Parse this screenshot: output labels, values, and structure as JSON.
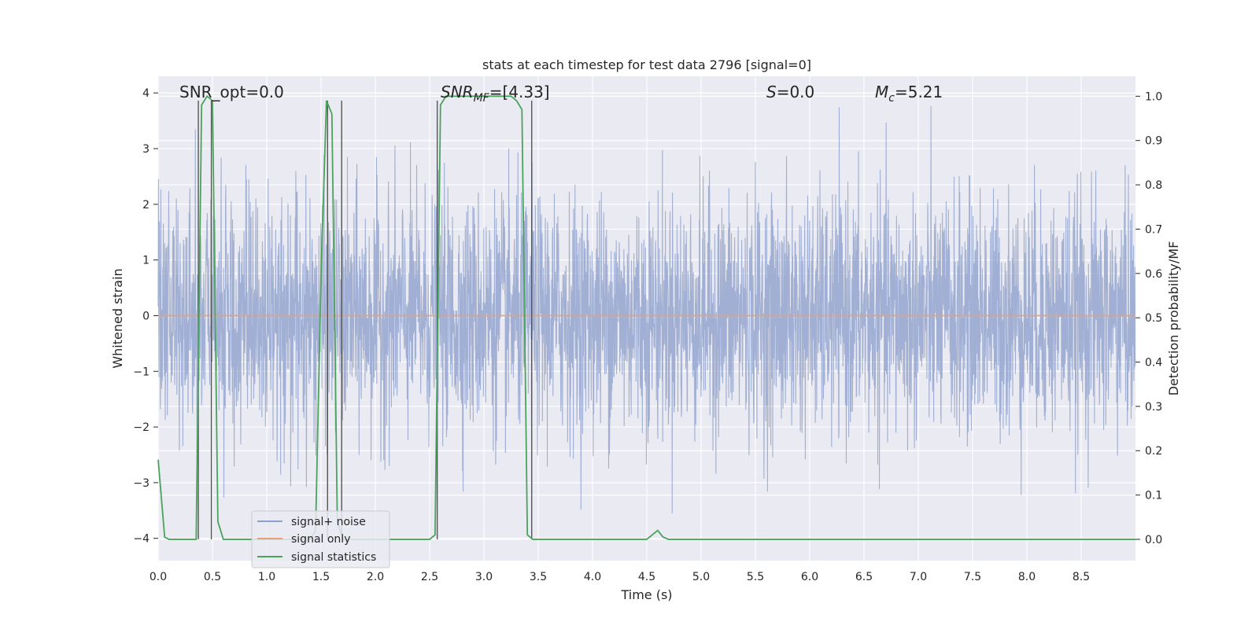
{
  "chart_data": {
    "type": "line",
    "title": "stats at each timestep for test data 2796 [signal=0]",
    "xlabel": "Time (s)",
    "ylabel": "Whitened strain",
    "y2label": "Detection probability/MF",
    "xlim": [
      0,
      9.0
    ],
    "ylim": [
      -4.4,
      4.3
    ],
    "y2lim": [
      -0.048,
      1.045
    ],
    "xticks": [
      "0.0",
      "0.5",
      "1.0",
      "1.5",
      "2.0",
      "2.5",
      "3.0",
      "3.5",
      "4.0",
      "4.5",
      "5.0",
      "5.5",
      "6.0",
      "6.5",
      "7.0",
      "7.5",
      "8.0",
      "8.5"
    ],
    "yticks": [
      "4",
      "3",
      "2",
      "1",
      "0",
      "−1",
      "−2",
      "−3",
      "−4"
    ],
    "y2ticks": [
      "1.0",
      "0.9",
      "0.8",
      "0.7",
      "0.6",
      "0.5",
      "0.4",
      "0.3",
      "0.2",
      "0.1",
      "0.0"
    ],
    "grid": true,
    "legend_position": "lower-left",
    "annotations": [
      {
        "label": "SNR_opt=0.0",
        "x": 0.2
      },
      {
        "label_main": "SNR",
        "label_sub": "MF",
        "label_rest": "=[4.33]",
        "x": 2.6
      },
      {
        "label_main": "S",
        "label_rest": "=0.0",
        "x": 5.6
      },
      {
        "label_main": "M",
        "label_sub": "c",
        "label_rest": "=5.21",
        "x": 6.6
      }
    ],
    "series": [
      {
        "name": "signal+ noise",
        "color": "#8da0cb",
        "description_values": "whitened noise, approx ±1.6 typical, peaks to ±3.9"
      },
      {
        "name": "signal only",
        "color": "#e8a07a",
        "values": [
          [
            0.0,
            0.0
          ],
          [
            9.0,
            0.0
          ]
        ]
      },
      {
        "name": "signal statistics",
        "color": "#4aa35c",
        "axis": "y2",
        "x": [
          0.0,
          0.06,
          0.1,
          0.15,
          0.2,
          0.25,
          0.3,
          0.35,
          0.4,
          0.45,
          0.5,
          0.55,
          0.6,
          0.65,
          0.7,
          0.75,
          0.8,
          0.85,
          0.9,
          0.95,
          1.0,
          1.05,
          1.1,
          1.15,
          1.2,
          1.25,
          1.3,
          1.35,
          1.4,
          1.45,
          1.5,
          1.55,
          1.6,
          1.65,
          1.7,
          1.75,
          1.8,
          1.85,
          1.9,
          1.95,
          2.0,
          2.05,
          2.1,
          2.15,
          2.2,
          2.25,
          2.3,
          2.35,
          2.4,
          2.45,
          2.5,
          2.55,
          2.6,
          2.65,
          2.7,
          2.75,
          2.8,
          2.85,
          2.9,
          2.95,
          3.0,
          3.05,
          3.1,
          3.15,
          3.2,
          3.25,
          3.3,
          3.35,
          3.4,
          3.45,
          3.5,
          3.55,
          3.6,
          3.65,
          3.7,
          3.75,
          3.8,
          3.85,
          3.9,
          3.95,
          4.0,
          4.05,
          4.1,
          4.15,
          4.2,
          4.25,
          4.3,
          4.35,
          4.4,
          4.45,
          4.5,
          4.55,
          4.6,
          4.65,
          4.7,
          4.75,
          4.8,
          4.85,
          4.9,
          4.95,
          5.0,
          5.5,
          6.0,
          6.5,
          7.0,
          7.5,
          8.0,
          8.5,
          9.0
        ],
        "values": [
          0.18,
          0.005,
          0.0,
          0.0,
          0.0,
          0.0,
          0.0,
          0.0,
          0.98,
          1.0,
          0.99,
          0.04,
          0.0,
          0.0,
          0.0,
          0.0,
          0.0,
          0.0,
          0.0,
          0.0,
          0.0,
          0.0,
          0.0,
          0.0,
          0.0,
          0.0,
          0.0,
          0.0,
          0.0,
          0.02,
          0.6,
          0.99,
          0.96,
          0.04,
          0.0,
          0.0,
          0.0,
          0.0,
          0.0,
          0.0,
          0.0,
          0.0,
          0.0,
          0.0,
          0.0,
          0.0,
          0.0,
          0.0,
          0.0,
          0.0,
          0.0,
          0.01,
          0.98,
          1.0,
          1.0,
          1.0,
          1.0,
          1.0,
          1.0,
          1.0,
          1.0,
          1.0,
          1.0,
          1.0,
          1.0,
          1.0,
          0.99,
          0.97,
          0.01,
          0.0,
          0.0,
          0.0,
          0.0,
          0.0,
          0.0,
          0.0,
          0.0,
          0.0,
          0.0,
          0.0,
          0.0,
          0.0,
          0.0,
          0.0,
          0.0,
          0.0,
          0.0,
          0.0,
          0.0,
          0.0,
          0.0,
          0.01,
          0.02,
          0.005,
          0.0,
          0.0,
          0.0,
          0.0,
          0.0,
          0.0,
          0.0,
          0.0,
          0.0,
          0.0,
          0.0,
          0.0,
          0.0,
          0.0,
          0.0
        ]
      }
    ],
    "vlines_x": [
      0.37,
      0.49,
      1.56,
      1.69,
      2.57,
      3.44
    ]
  }
}
